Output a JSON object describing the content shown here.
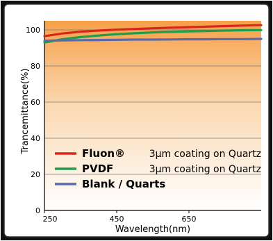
{
  "chart_data": {
    "type": "line",
    "xlabel": "Wavelength(nm)",
    "ylabel": "Trancemittance(%)",
    "xlim": [
      250,
      850
    ],
    "ylim": [
      0,
      105
    ],
    "x_ticks": [
      "250",
      "450",
      "650"
    ],
    "y_ticks": [
      "0",
      "20",
      "40",
      "60",
      "80",
      "100"
    ],
    "grid": "horizontal",
    "legend_position": "bottom-right inside plot",
    "series": [
      {
        "name": "Fluon®",
        "description": "3µm coating on Quartz",
        "color": "#d9261c",
        "x": [
          250,
          300,
          350,
          400,
          450,
          500,
          550,
          600,
          650,
          700,
          750,
          800,
          850
        ],
        "y": [
          96.5,
          98.0,
          99.0,
          99.6,
          100.1,
          100.5,
          100.9,
          101.2,
          101.5,
          101.8,
          102.1,
          102.4,
          102.6
        ]
      },
      {
        "name": "PVDF",
        "description": "3µm coating on Quartz",
        "color": "#1e9e4a",
        "x": [
          250,
          300,
          350,
          400,
          450,
          500,
          550,
          600,
          650,
          700,
          750,
          800,
          850
        ],
        "y": [
          93.0,
          94.8,
          96.0,
          96.9,
          97.6,
          98.1,
          98.6,
          98.9,
          99.2,
          99.4,
          99.6,
          99.8,
          99.9
        ]
      },
      {
        "name": "Blank / Quarts",
        "description": "",
        "color": "#5a6aa8",
        "x": [
          250,
          300,
          350,
          400,
          450,
          500,
          550,
          600,
          650,
          700,
          750,
          800,
          850
        ],
        "y": [
          94.0,
          94.2,
          94.3,
          94.4,
          94.5,
          94.6,
          94.6,
          94.7,
          94.8,
          94.8,
          94.9,
          94.9,
          95.0
        ]
      }
    ]
  }
}
